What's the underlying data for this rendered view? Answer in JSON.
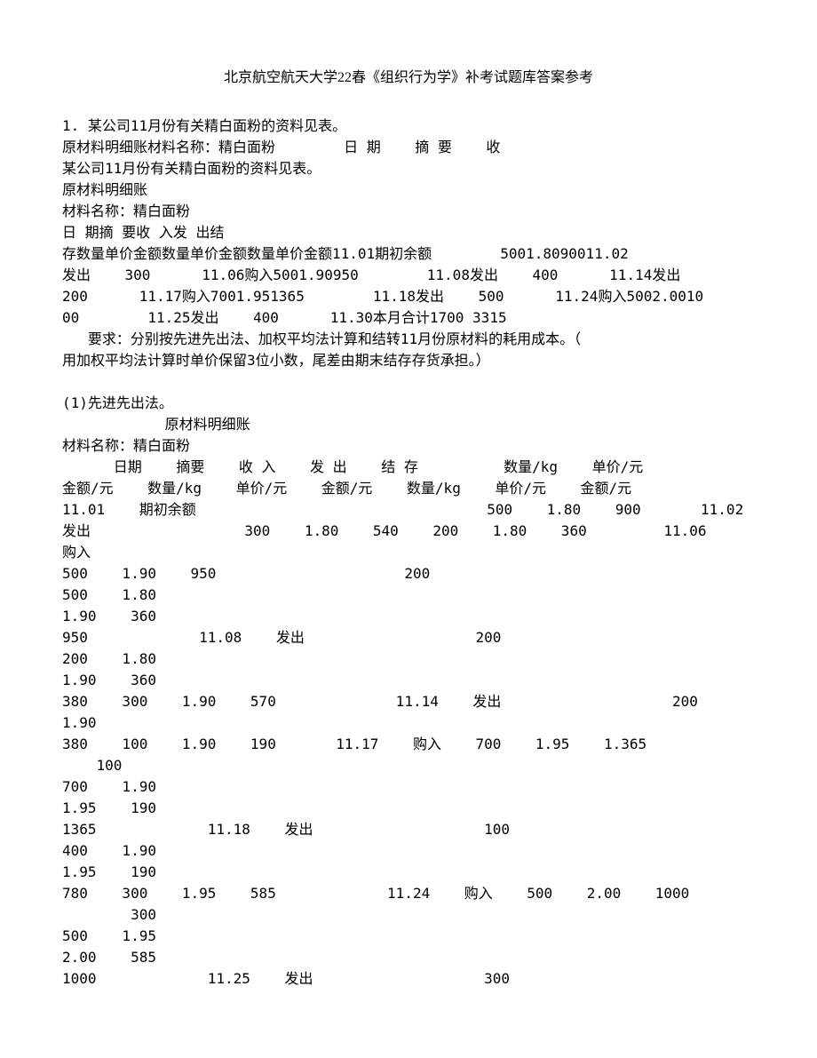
{
  "title": "北京航空航天大学22春《组织行为学》补考试题库答案参考",
  "q_num": "1. 某公司11月份有关精白面粉的资料见表。",
  "lines": [
    "原材料明细账材料名称：精白面粉        日 期    摘 要    收",
    "某公司11月份有关精白面粉的资料见表。",
    "原材料明细账",
    "材料名称：精白面粉",
    "日 期摘 要收 入发 出结",
    "存数量单价金额数量单价金额数量单价金额11.01期初余额        5001.8090011.02",
    "发出    300      11.06购入5001.90950        11.08发出    400      11.14发出",
    "200      11.17购入7001.951365        11.18发出    500      11.24购入5002.0010",
    "00        11.25发出    400      11.30本月合计1700 3315",
    "   要求：分别按先进先出法、加权平均法计算和结转11月份原材料的耗用成本。（",
    "用加权平均法计算时单价保留3位小数，尾差由期末结存存货承担。）"
  ],
  "answer_header": "(1)先进先出法。",
  "answer_sub1": "            原材料明细账",
  "answer_sub2": "材料名称：精白面粉",
  "table_lines": [
    "      日期    摘要    收 入    发 出    结 存          数量/kg    单价/元",
    "金额/元    数量/kg    单价/元    金额/元    数量/kg    单价/元    金额/元",
    "11.01    期初余额                                  500    1.80    900       11.02",
    "发出                  300    1.80    540    200    1.80    360         11.06    购入",
    "500    1.90    950                      200",
    "500    1.80",
    "1.90    360",
    "950             11.08    发出                    200",
    "200    1.80",
    "1.90    360",
    "380    300    1.90    570              11.14    发出                    200    1.90",
    "380    100    1.90    190       11.17    购入    700    1.95    1.365",
    "    100",
    "700    1.90",
    "1.95    190",
    "1365             11.18    发出                    100",
    "400    1.90",
    "1.95    190",
    "780    300    1.95    585             11.24    购入    500    2.00    1000",
    "        300",
    "500    1.95",
    "2.00    585",
    "1000             11.25    发出                    300"
  ]
}
